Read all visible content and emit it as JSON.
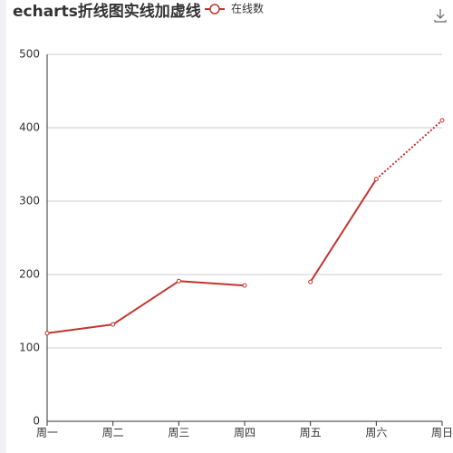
{
  "chart_data": {
    "type": "line",
    "title": "echarts折线图实线加虚线",
    "categories": [
      "周一",
      "周二",
      "周三",
      "周四",
      "周五",
      "周六",
      "周日"
    ],
    "series": [
      {
        "name": "在线数",
        "color": "#c23531",
        "values": [
          120,
          132,
          191,
          185,
          190,
          330,
          410
        ],
        "segment_styles": [
          "solid",
          "solid",
          "solid",
          "none",
          "solid",
          "dotted"
        ]
      }
    ],
    "ylim": [
      0,
      500
    ],
    "yticks": [
      0,
      100,
      200,
      300,
      400,
      500
    ],
    "grid": true
  }
}
